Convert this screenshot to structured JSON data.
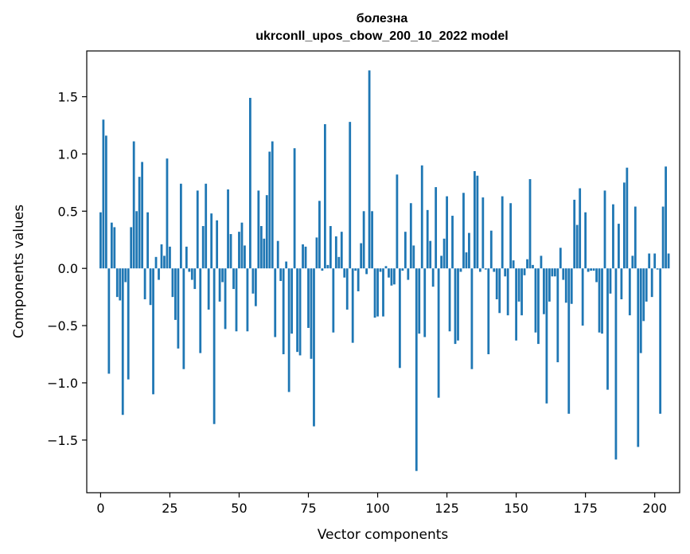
{
  "chart_data": {
    "type": "bar",
    "title_line1": "болезна",
    "title_line2": "ukrconll_upos_cbow_200_10_2022 model",
    "xlabel": "Vector components",
    "ylabel": "Components values",
    "xlim": [
      -5,
      209
    ],
    "ylim": [
      -1.96,
      1.9
    ],
    "xticks": [
      0,
      25,
      50,
      75,
      100,
      125,
      150,
      175,
      200
    ],
    "yticks": [
      -1.5,
      -1.0,
      -0.5,
      0.0,
      0.5,
      1.0,
      1.5
    ],
    "ytick_labels": [
      "−1.5",
      "−1.0",
      "−0.5",
      "0.0",
      "0.5",
      "1.0",
      "1.5"
    ],
    "bar_color": "#1f77b4",
    "grid": false,
    "values": [
      0.49,
      1.3,
      1.16,
      -0.92,
      0.4,
      0.36,
      -0.25,
      -0.28,
      -1.28,
      -0.12,
      -0.97,
      0.36,
      1.11,
      0.5,
      0.8,
      0.93,
      -0.27,
      0.49,
      -0.32,
      -1.1,
      0.1,
      -0.1,
      0.21,
      0.11,
      0.96,
      0.19,
      -0.25,
      -0.45,
      -0.7,
      0.74,
      -0.88,
      0.19,
      -0.03,
      -0.1,
      -0.18,
      0.68,
      -0.74,
      0.37,
      0.74,
      -0.36,
      0.48,
      -1.36,
      0.42,
      -0.29,
      -0.12,
      -0.53,
      0.69,
      0.3,
      -0.18,
      -0.55,
      0.32,
      0.4,
      0.2,
      -0.55,
      1.49,
      -0.22,
      -0.33,
      0.68,
      0.37,
      0.26,
      0.64,
      1.02,
      1.11,
      -0.6,
      0.24,
      -0.11,
      -0.75,
      0.06,
      -1.08,
      -0.57,
      1.05,
      -0.73,
      -0.76,
      0.21,
      0.19,
      -0.52,
      -0.79,
      -1.38,
      0.27,
      0.59,
      -0.02,
      1.26,
      0.03,
      0.37,
      -0.56,
      0.28,
      0.1,
      0.32,
      -0.08,
      -0.36,
      1.28,
      -0.65,
      -0.02,
      -0.2,
      0.22,
      0.5,
      -0.05,
      1.73,
      0.5,
      -0.43,
      -0.42,
      -0.03,
      -0.42,
      0.02,
      -0.08,
      -0.15,
      -0.14,
      0.82,
      -0.87,
      -0.02,
      0.32,
      -0.1,
      0.57,
      0.2,
      -1.77,
      -0.57,
      0.9,
      -0.6,
      0.51,
      0.24,
      -0.16,
      0.71,
      -1.13,
      0.11,
      0.26,
      0.63,
      -0.55,
      0.46,
      -0.66,
      -0.63,
      -0.03,
      0.66,
      0.14,
      0.31,
      -0.88,
      0.85,
      0.81,
      -0.03,
      0.62,
      -0.01,
      -0.75,
      0.33,
      -0.03,
      -0.27,
      -0.39,
      0.63,
      -0.07,
      -0.41,
      0.57,
      0.07,
      -0.63,
      -0.29,
      -0.41,
      -0.06,
      0.08,
      0.78,
      0.03,
      -0.56,
      -0.66,
      0.11,
      -0.4,
      -1.18,
      -0.29,
      -0.07,
      -0.07,
      -0.82,
      0.18,
      -0.1,
      -0.3,
      -1.27,
      -0.31,
      0.6,
      0.38,
      0.7,
      -0.5,
      0.49,
      -0.03,
      -0.02,
      -0.02,
      -0.12,
      -0.56,
      -0.57,
      0.68,
      -1.06,
      -0.22,
      0.56,
      -1.67,
      0.39,
      -0.27,
      0.75,
      0.88,
      -0.41,
      0.11,
      0.54,
      -1.56,
      -0.74,
      -0.46,
      -0.29,
      0.13,
      -0.25,
      0.13,
      -0.01,
      -1.27,
      0.54,
      0.89,
      0.13
    ]
  }
}
